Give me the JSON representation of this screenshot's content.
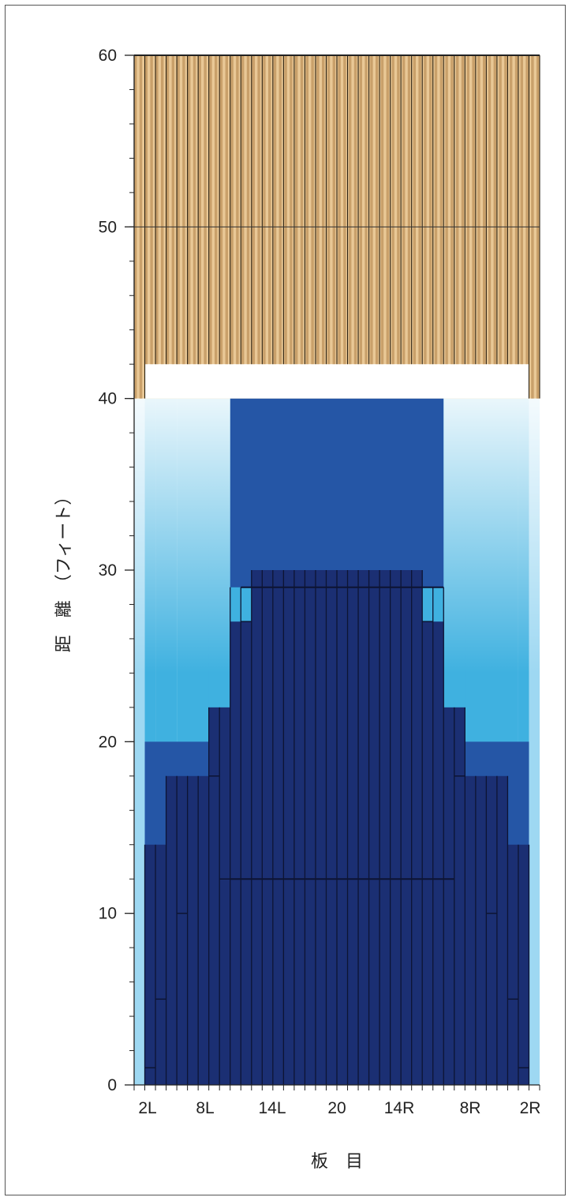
{
  "chart_data": {
    "type": "heatmap",
    "title": "",
    "xlabel": "板　目",
    "ylabel": "距　離　（フィート）",
    "ylim": [
      0,
      60
    ],
    "y_ticks": [
      0,
      10,
      20,
      30,
      40,
      50,
      60
    ],
    "y_minor_step": 2,
    "x_tick_labels": [
      "2L",
      "8L",
      "14L",
      "20",
      "14R",
      "8R",
      "2R"
    ],
    "boards_count": 38,
    "wood_top_level": 40,
    "wood_inner_top_level": 42,
    "intensity_zone_levels": {
      "center": [
        30,
        30,
        30,
        30,
        30,
        30,
        30,
        30,
        30,
        30,
        30,
        30,
        30,
        30,
        30,
        30
      ],
      "outlines": [
        {
          "from_board": 1,
          "to_board": 2,
          "level": 14
        },
        {
          "from_board": 3,
          "to_board": 4,
          "level": 18
        },
        {
          "from_board": 5,
          "to_board": 6,
          "level": 18
        },
        {
          "from_board": 7,
          "to_board": 8,
          "level": 22
        },
        {
          "from_board": 9,
          "to_board": 10,
          "level": 29
        },
        {
          "from_board": 11,
          "to_board": 26,
          "level": 30
        },
        {
          "from_board": 27,
          "to_board": 28,
          "level": 29
        },
        {
          "from_board": 29,
          "to_board": 30,
          "level": 22
        },
        {
          "from_board": 31,
          "to_board": 32,
          "level": 18
        },
        {
          "from_board": 33,
          "to_board": 34,
          "level": 18
        },
        {
          "from_board": 35,
          "to_board": 36,
          "level": 14
        }
      ],
      "inner_steps": [
        {
          "boards": [
            1,
            36
          ],
          "level": 1
        },
        {
          "boards": [
            2,
            35
          ],
          "level": 5
        },
        {
          "boards": [
            4,
            33
          ],
          "level": 10
        },
        {
          "boards": [
            8,
            29
          ],
          "level": 12
        },
        {
          "boards": [
            7,
            30
          ],
          "level": 18
        },
        {
          "boards": [
            10,
            27
          ],
          "level": 27
        },
        {
          "boards": [
            11,
            26
          ],
          "level": 29
        }
      ]
    },
    "colors": {
      "wood_light": "#e9c896",
      "wood_dark": "#c9a06a",
      "deep_blue": "#1b2f73",
      "mid_blue": "#2556a6",
      "light_blue": "#3fb1e0",
      "pale_blue": "#9ed8f2"
    }
  }
}
